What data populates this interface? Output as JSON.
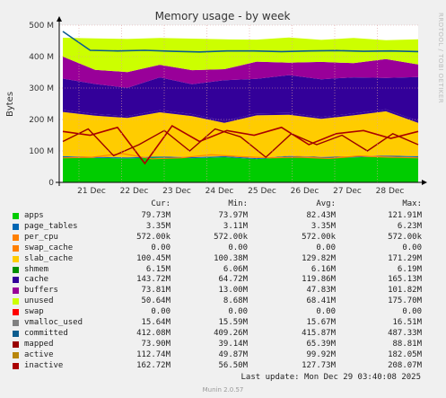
{
  "chart_data": {
    "type": "area",
    "title": "Memory usage - by week",
    "ylabel": "Bytes",
    "ylim": [
      0,
      500000000
    ],
    "yticks": [
      {
        "v": 0,
        "label": "0"
      },
      {
        "v": 100000000,
        "label": "100 M"
      },
      {
        "v": 200000000,
        "label": "200 M"
      },
      {
        "v": 300000000,
        "label": "300 M"
      },
      {
        "v": 400000000,
        "label": "400 M"
      },
      {
        "v": 500000000,
        "label": "500 M"
      }
    ],
    "xdays": [
      "21 Dec",
      "22 Dec",
      "23 Dec",
      "24 Dec",
      "25 Dec",
      "26 Dec",
      "27 Dec",
      "28 Dec"
    ],
    "grid": true,
    "stack_series": [
      {
        "name": "apps",
        "color": "#00cc00",
        "values": [
          80,
          78,
          76,
          79,
          77,
          80,
          74,
          81,
          78,
          79,
          82,
          80
        ]
      },
      {
        "name": "page_tables",
        "color": "#0066b3",
        "values": [
          3,
          3,
          3,
          3,
          3,
          3,
          3,
          3,
          3,
          3,
          3,
          3
        ]
      },
      {
        "name": "per_cpu",
        "color": "#ff8000",
        "values": [
          1,
          1,
          1,
          1,
          1,
          1,
          1,
          1,
          1,
          1,
          1,
          1
        ]
      },
      {
        "name": "swap_cache",
        "color": "#ffcc00",
        "values": [
          0,
          0,
          0,
          0,
          0,
          0,
          0,
          0,
          0,
          0,
          0,
          0
        ]
      },
      {
        "name": "slab_cache",
        "color": "#ffcc00",
        "values": [
          140,
          130,
          125,
          140,
          130,
          105,
          135,
          130,
          120,
          130,
          140,
          105
        ]
      },
      {
        "name": "shmem",
        "color": "#330099",
        "values": [
          6,
          6,
          6,
          6,
          6,
          6,
          6,
          6,
          6,
          6,
          6,
          6
        ]
      },
      {
        "name": "cache",
        "color": "#330099",
        "values": [
          100,
          95,
          90,
          105,
          95,
          130,
          110,
          120,
          120,
          115,
          100,
          140
        ]
      },
      {
        "name": "buffers",
        "color": "#990099",
        "values": [
          70,
          45,
          50,
          40,
          45,
          35,
          55,
          40,
          55,
          45,
          60,
          40
        ]
      },
      {
        "name": "unused",
        "color": "#ccff00",
        "values": [
          60,
          100,
          105,
          85,
          100,
          95,
          70,
          80,
          70,
          80,
          60,
          80
        ]
      }
    ],
    "committed": {
      "color": "#0b5c8e",
      "values": [
        480,
        420,
        418,
        420,
        417,
        415,
        418,
        418,
        416,
        418,
        419,
        417,
        418,
        416
      ]
    },
    "mapped": {
      "color": "#990000",
      "values": [
        130,
        170,
        85,
        120,
        165,
        100,
        170,
        145,
        80,
        155,
        120,
        150,
        100,
        155,
        120
      ]
    },
    "active": {
      "color": "#ff8000",
      "values": [
        78,
        80,
        92,
        75,
        78,
        88,
        82,
        78,
        80,
        76,
        84,
        80,
        78
      ]
    },
    "inactive": {
      "color": "#aa0000",
      "values": [
        162,
        150,
        175,
        60,
        180,
        130,
        165,
        150,
        175,
        120,
        155,
        165,
        140,
        162
      ]
    },
    "legend": {
      "headers": [
        "Cur:",
        "Min:",
        "Avg:",
        "Max:"
      ],
      "rows": [
        {
          "name": "apps",
          "color": "#00cc00",
          "cur": "79.73M",
          "min": "73.97M",
          "avg": "82.43M",
          "max": "121.91M"
        },
        {
          "name": "page_tables",
          "color": "#0066b3",
          "cur": "3.35M",
          "min": "3.11M",
          "avg": "3.35M",
          "max": "6.23M"
        },
        {
          "name": "per_cpu",
          "color": "#ff8000",
          "cur": "572.00k",
          "min": "572.00k",
          "avg": "572.00k",
          "max": "572.00k"
        },
        {
          "name": "swap_cache",
          "color": "#ff8000",
          "cur": "0.00",
          "min": "0.00",
          "avg": "0.00",
          "max": "0.00"
        },
        {
          "name": "slab_cache",
          "color": "#ffcc00",
          "cur": "100.45M",
          "min": "100.38M",
          "avg": "129.82M",
          "max": "171.29M"
        },
        {
          "name": "shmem",
          "color": "#008f00",
          "cur": "6.15M",
          "min": "6.06M",
          "avg": "6.16M",
          "max": "6.19M"
        },
        {
          "name": "cache",
          "color": "#330099",
          "cur": "143.72M",
          "min": "64.72M",
          "avg": "119.86M",
          "max": "165.13M"
        },
        {
          "name": "buffers",
          "color": "#990099",
          "cur": "73.81M",
          "min": "13.00M",
          "avg": "47.83M",
          "max": "101.82M"
        },
        {
          "name": "unused",
          "color": "#ccff00",
          "cur": "50.64M",
          "min": "8.68M",
          "avg": "68.41M",
          "max": "175.70M"
        },
        {
          "name": "swap",
          "color": "#ff0000",
          "cur": "0.00",
          "min": "0.00",
          "avg": "0.00",
          "max": "0.00"
        },
        {
          "name": "vmalloc_used",
          "color": "#808080",
          "cur": "15.64M",
          "min": "15.59M",
          "avg": "15.67M",
          "max": "16.51M"
        },
        {
          "name": "committed",
          "color": "#0b5c8e",
          "cur": "412.08M",
          "min": "409.26M",
          "avg": "415.87M",
          "max": "487.33M"
        },
        {
          "name": "mapped",
          "color": "#990000",
          "cur": "73.90M",
          "min": "39.14M",
          "avg": "65.39M",
          "max": "88.81M"
        },
        {
          "name": "active",
          "color": "#b8860b",
          "cur": "112.74M",
          "min": "49.87M",
          "avg": "99.92M",
          "max": "182.05M"
        },
        {
          "name": "inactive",
          "color": "#aa0000",
          "cur": "162.72M",
          "min": "56.50M",
          "avg": "127.73M",
          "max": "208.07M"
        }
      ]
    }
  },
  "footer": {
    "last_update": "Last update: Mon Dec 29 03:40:08 2025",
    "version": "Munin 2.0.57"
  },
  "side_credit": "RRDTOOL / TOBI OETIKER"
}
